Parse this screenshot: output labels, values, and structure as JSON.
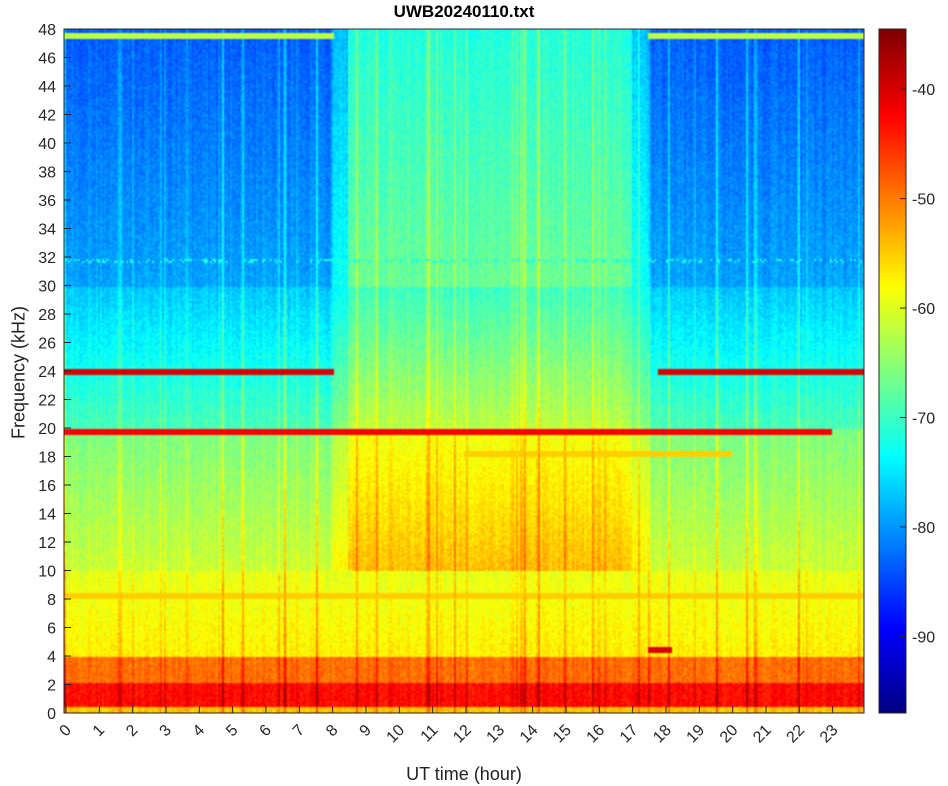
{
  "chart_data": {
    "type": "heatmap",
    "title": "UWB20240110.txt",
    "xlabel": "UT time (hour)",
    "ylabel": "Frequency (kHz)",
    "xlim": [
      0,
      24
    ],
    "ylim": [
      0,
      48
    ],
    "xticks": [
      0,
      1,
      2,
      3,
      4,
      5,
      6,
      7,
      8,
      9,
      10,
      11,
      12,
      13,
      14,
      15,
      16,
      17,
      18,
      19,
      20,
      21,
      22,
      23
    ],
    "yticks": [
      0,
      2,
      4,
      6,
      8,
      10,
      12,
      14,
      16,
      18,
      20,
      22,
      24,
      26,
      28,
      30,
      32,
      34,
      36,
      38,
      40,
      42,
      44,
      46,
      48
    ],
    "colorbar": {
      "ticks": [
        -40,
        -50,
        -60,
        -70,
        -80,
        -90
      ],
      "clim": [
        -97,
        -34.5
      ],
      "colormap": "jet"
    },
    "features": [
      {
        "freq_khz": [
          0,
          4
        ],
        "hours": [
          0,
          24
        ],
        "level_db": -45
      },
      {
        "freq_khz": [
          4,
          48
        ],
        "hours": [
          8.5,
          17
        ],
        "level_db": -70
      },
      {
        "freq_khz": 24,
        "hours": [
          [
            0,
            8.1
          ],
          [
            17.8,
            24
          ]
        ],
        "level_db": -40
      },
      {
        "freq_khz": 19.8,
        "hours": [
          0,
          23
        ],
        "level_db": -42
      },
      {
        "freq_khz": 18.3,
        "hours": [
          12,
          20
        ],
        "level_db": -55
      },
      {
        "freq_khz": 8.3,
        "hours": [
          0,
          24
        ],
        "level_db": -55
      },
      {
        "freq_khz": 4.5,
        "hours": [
          17.5,
          18.2
        ],
        "level_db": -40
      }
    ]
  }
}
